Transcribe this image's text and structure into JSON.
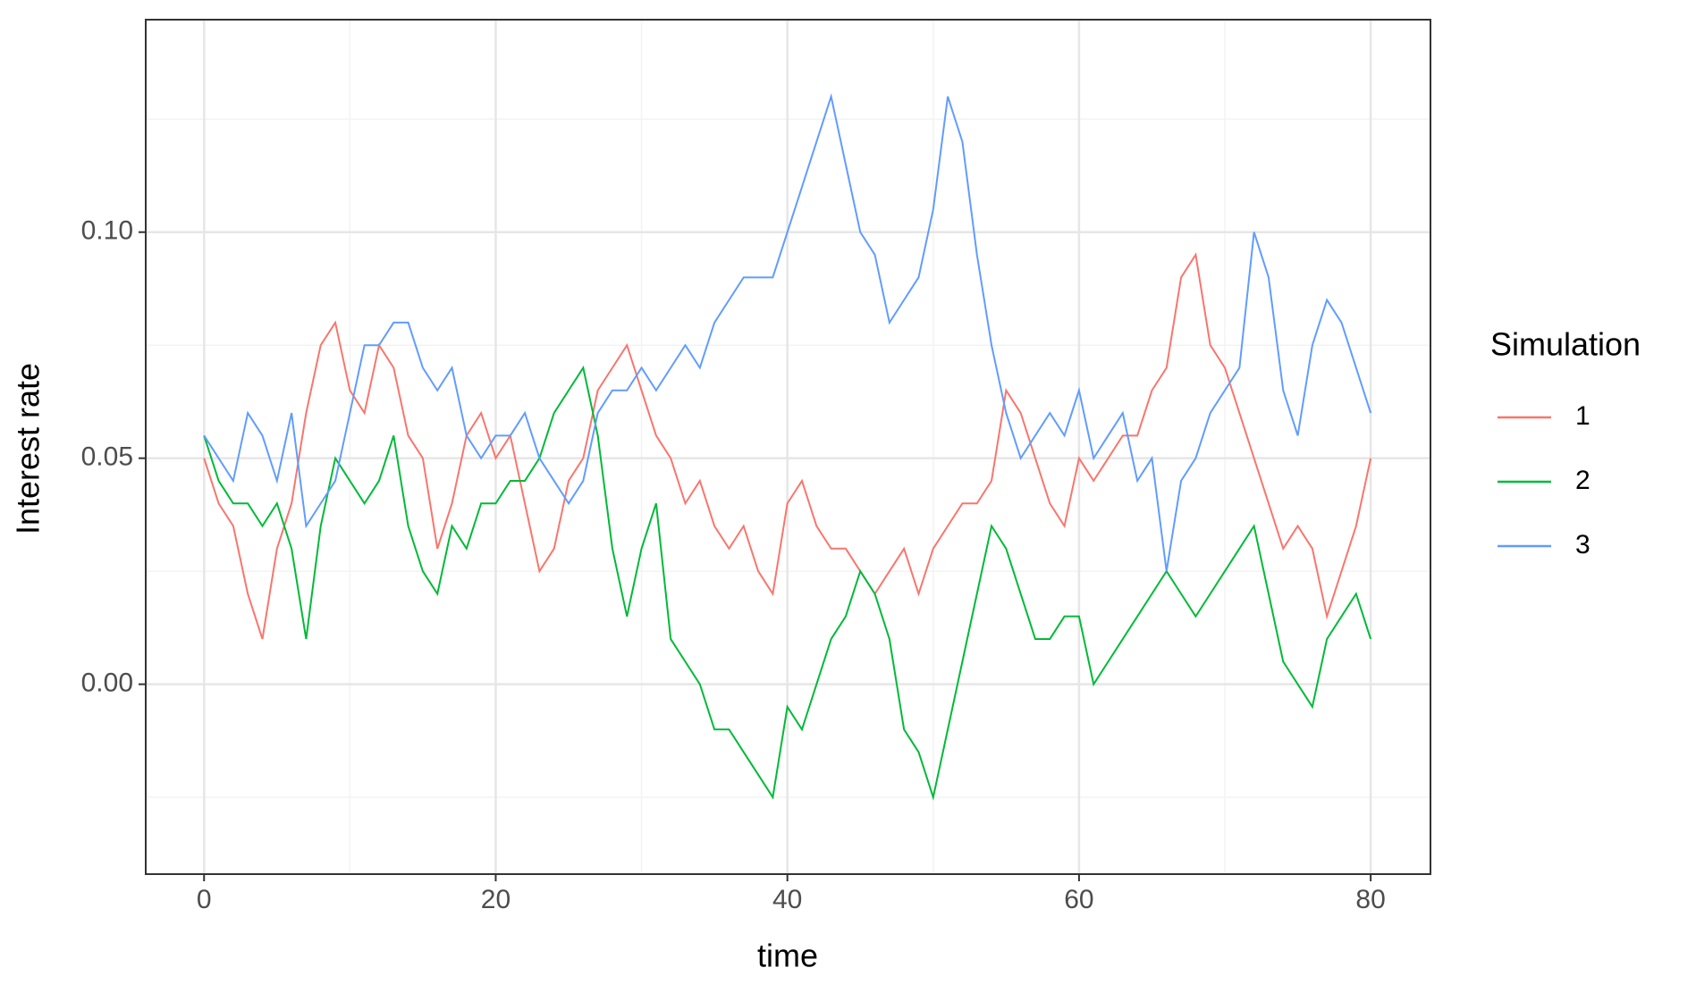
{
  "chart_data": {
    "type": "line",
    "x_label": "time",
    "y_label": "Interest rate",
    "legend_title": "Simulation",
    "legend_position": "right",
    "grid": true,
    "x": [
      0,
      1,
      2,
      3,
      4,
      5,
      6,
      7,
      8,
      9,
      10,
      11,
      12,
      13,
      14,
      15,
      16,
      17,
      18,
      19,
      20,
      21,
      22,
      23,
      24,
      25,
      26,
      27,
      28,
      29,
      30,
      31,
      32,
      33,
      34,
      35,
      36,
      37,
      38,
      39,
      40,
      41,
      42,
      43,
      44,
      45,
      46,
      47,
      48,
      49,
      50,
      51,
      52,
      53,
      54,
      55,
      56,
      57,
      58,
      59,
      60,
      61,
      62,
      63,
      64,
      65,
      66,
      67,
      68,
      69,
      70,
      71,
      72,
      73,
      74,
      75,
      76,
      77,
      78,
      79,
      80
    ],
    "xlim": [
      -4,
      84.1
    ],
    "xticks": [
      0,
      20,
      40,
      60,
      80
    ],
    "x_minor_grid": [
      10,
      30,
      50,
      70
    ],
    "ylim": [
      -0.042,
      0.147
    ],
    "yticks": [
      {
        "value": 0,
        "label": "0.00"
      },
      {
        "value": 0.05,
        "label": "0.05"
      },
      {
        "value": 0.1,
        "label": "0.10"
      }
    ],
    "y_minor_grid": [
      -0.025,
      0.025,
      0.075,
      0.125
    ],
    "series": [
      {
        "name": "1",
        "color": "#F8766D",
        "values": [
          0.05,
          0.04,
          0.035,
          0.02,
          0.01,
          0.03,
          0.04,
          0.06,
          0.075,
          0.08,
          0.065,
          0.06,
          0.075,
          0.07,
          0.055,
          0.05,
          0.03,
          0.04,
          0.055,
          0.06,
          0.05,
          0.055,
          0.04,
          0.025,
          0.03,
          0.045,
          0.05,
          0.065,
          0.07,
          0.075,
          0.065,
          0.055,
          0.05,
          0.04,
          0.045,
          0.035,
          0.03,
          0.035,
          0.025,
          0.02,
          0.04,
          0.045,
          0.035,
          0.03,
          0.03,
          0.025,
          0.02,
          0.025,
          0.03,
          0.02,
          0.03,
          0.035,
          0.04,
          0.04,
          0.045,
          0.065,
          0.06,
          0.05,
          0.04,
          0.035,
          0.05,
          0.045,
          0.05,
          0.055,
          0.055,
          0.065,
          0.07,
          0.09,
          0.095,
          0.075,
          0.07,
          0.06,
          0.05,
          0.04,
          0.03,
          0.035,
          0.03,
          0.015,
          0.025,
          0.035,
          0.05
        ]
      },
      {
        "name": "2",
        "color": "#00BA38",
        "values": [
          0.055,
          0.045,
          0.04,
          0.04,
          0.035,
          0.04,
          0.03,
          0.01,
          0.035,
          0.05,
          0.045,
          0.04,
          0.045,
          0.055,
          0.035,
          0.025,
          0.02,
          0.035,
          0.03,
          0.04,
          0.04,
          0.045,
          0.045,
          0.05,
          0.06,
          0.065,
          0.07,
          0.055,
          0.03,
          0.015,
          0.03,
          0.04,
          0.01,
          0.005,
          0.0,
          -0.01,
          -0.01,
          -0.015,
          -0.02,
          -0.025,
          -0.005,
          -0.01,
          0.0,
          0.01,
          0.015,
          0.025,
          0.02,
          0.01,
          -0.01,
          -0.015,
          -0.025,
          -0.01,
          0.005,
          0.02,
          0.035,
          0.03,
          0.02,
          0.01,
          0.01,
          0.015,
          0.015,
          0.0,
          0.005,
          0.01,
          0.015,
          0.02,
          0.025,
          0.02,
          0.015,
          0.02,
          0.025,
          0.03,
          0.035,
          0.02,
          0.005,
          0.0,
          -0.005,
          0.01,
          0.015,
          0.02,
          0.01
        ]
      },
      {
        "name": "3",
        "color": "#619CFF",
        "values": [
          0.055,
          0.05,
          0.045,
          0.06,
          0.055,
          0.045,
          0.06,
          0.035,
          0.04,
          0.045,
          0.06,
          0.075,
          0.075,
          0.08,
          0.08,
          0.07,
          0.065,
          0.07,
          0.055,
          0.05,
          0.055,
          0.055,
          0.06,
          0.05,
          0.045,
          0.04,
          0.045,
          0.06,
          0.065,
          0.065,
          0.07,
          0.065,
          0.07,
          0.075,
          0.07,
          0.08,
          0.085,
          0.09,
          0.09,
          0.09,
          0.1,
          0.11,
          0.12,
          0.13,
          0.115,
          0.1,
          0.095,
          0.08,
          0.085,
          0.09,
          0.105,
          0.13,
          0.12,
          0.095,
          0.075,
          0.06,
          0.05,
          0.055,
          0.06,
          0.055,
          0.065,
          0.05,
          0.055,
          0.06,
          0.045,
          0.05,
          0.025,
          0.045,
          0.05,
          0.06,
          0.065,
          0.07,
          0.1,
          0.09,
          0.065,
          0.055,
          0.075,
          0.085,
          0.08,
          0.07,
          0.06
        ]
      }
    ]
  }
}
